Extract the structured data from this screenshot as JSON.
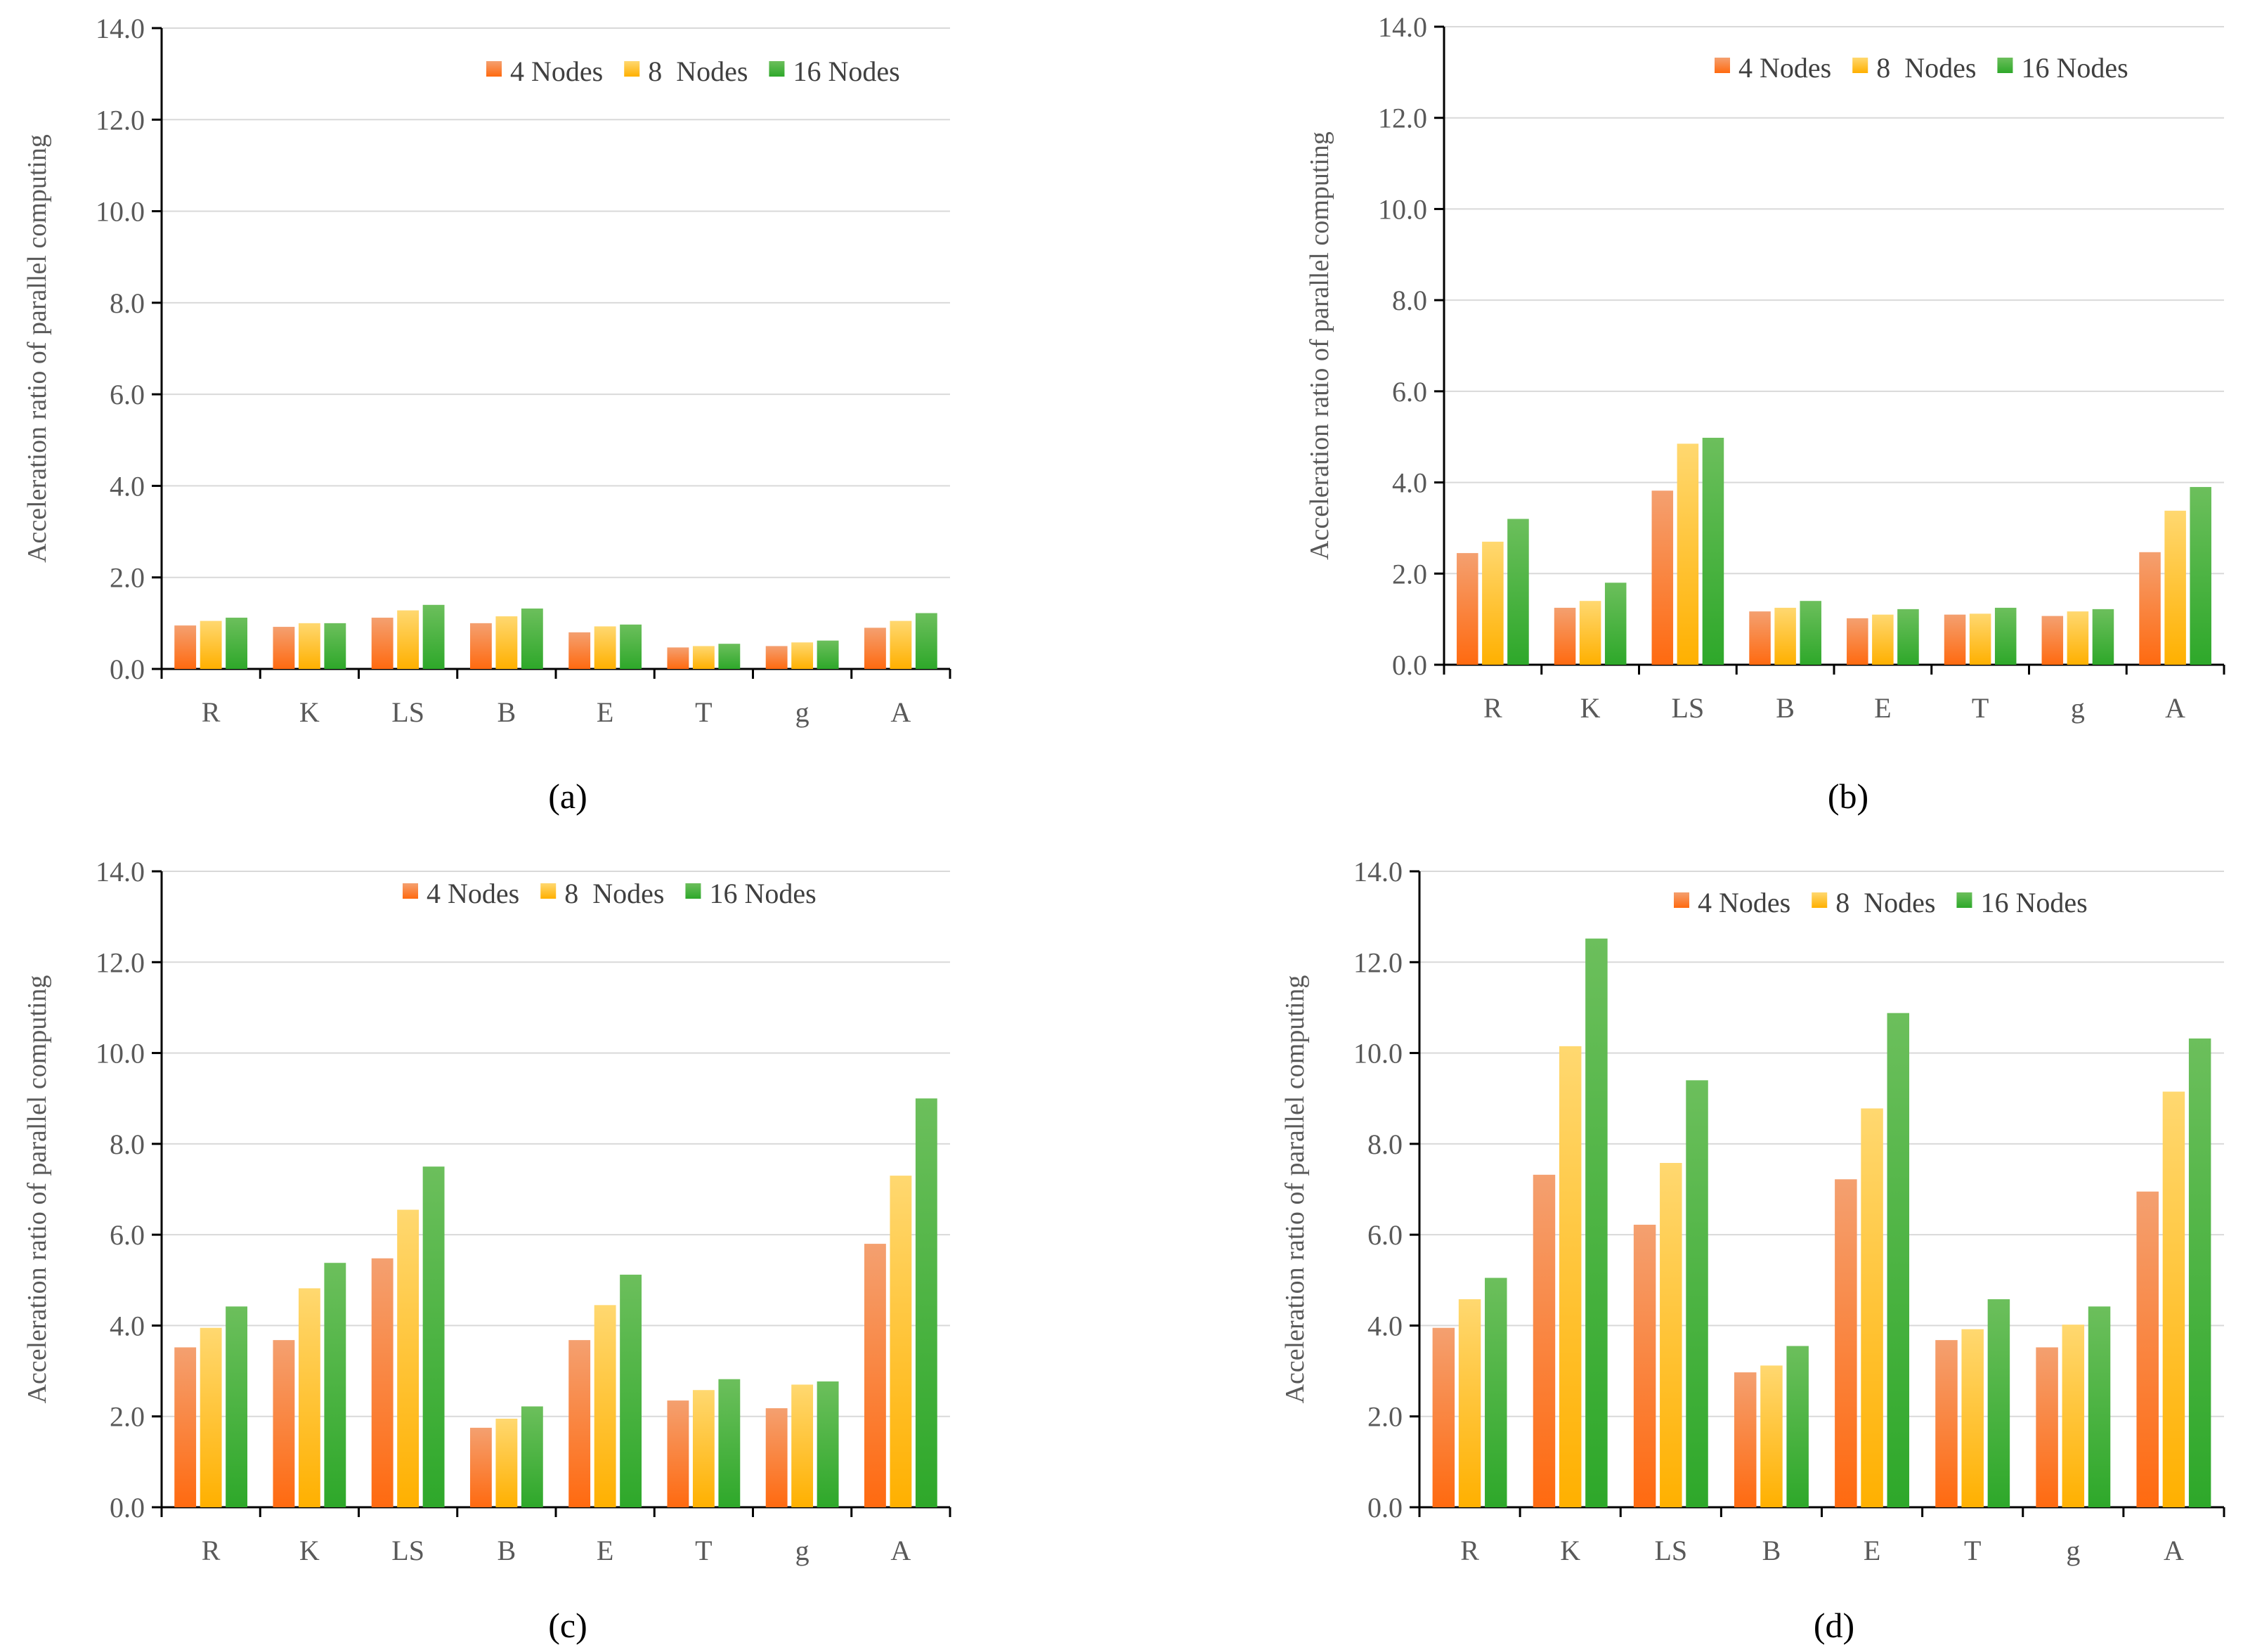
{
  "chart_data": [
    {
      "type": "bar",
      "caption": "(a)",
      "ylabel": "Acceleration ratio of parallel computing",
      "xlabel": "",
      "ylim": [
        0,
        14
      ],
      "yticks": [
        "0.0",
        "2.0",
        "4.0",
        "6.0",
        "8.0",
        "10.0",
        "12.0",
        "14.0"
      ],
      "categories": [
        "R",
        "K",
        "LS",
        "B",
        "E",
        "T",
        "g",
        "A"
      ],
      "legend_position": "top-right",
      "series": [
        {
          "name": "4 Nodes",
          "values": [
            0.95,
            0.92,
            1.12,
            1.0,
            0.8,
            0.47,
            0.5,
            0.9
          ]
        },
        {
          "name": "8  Nodes",
          "values": [
            1.05,
            1.0,
            1.28,
            1.15,
            0.93,
            0.5,
            0.58,
            1.05
          ]
        },
        {
          "name": "16 Nodes",
          "values": [
            1.12,
            1.0,
            1.4,
            1.32,
            0.97,
            0.55,
            0.62,
            1.22
          ]
        }
      ]
    },
    {
      "type": "bar",
      "caption": "(b)",
      "ylabel": "Acceleration ratio of parallel computing",
      "xlabel": "",
      "ylim": [
        0,
        14
      ],
      "yticks": [
        "0.0",
        "2.0",
        "4.0",
        "6.0",
        "8.0",
        "10.0",
        "12.0",
        "14.0"
      ],
      "categories": [
        "R",
        "K",
        "LS",
        "B",
        "E",
        "T",
        "g",
        "A"
      ],
      "legend_position": "top-right",
      "series": [
        {
          "name": "4 Nodes",
          "values": [
            2.45,
            1.25,
            3.82,
            1.17,
            1.02,
            1.1,
            1.07,
            2.47
          ]
        },
        {
          "name": "8  Nodes",
          "values": [
            2.7,
            1.4,
            4.85,
            1.25,
            1.1,
            1.12,
            1.17,
            3.38
          ]
        },
        {
          "name": "16 Nodes",
          "values": [
            3.2,
            1.8,
            4.98,
            1.4,
            1.22,
            1.25,
            1.22,
            3.9
          ]
        }
      ]
    },
    {
      "type": "bar",
      "caption": "(c)",
      "ylabel": "Acceleration ratio of parallel computing",
      "xlabel": "",
      "ylim": [
        0,
        14
      ],
      "yticks": [
        "0.0",
        "2.0",
        "4.0",
        "6.0",
        "8.0",
        "10.0",
        "12.0",
        "14.0"
      ],
      "categories": [
        "R",
        "K",
        "LS",
        "B",
        "E",
        "T",
        "g",
        "A"
      ],
      "legend_position": "top-right",
      "series": [
        {
          "name": "4 Nodes",
          "values": [
            3.52,
            3.68,
            5.48,
            1.75,
            3.68,
            2.35,
            2.18,
            5.8
          ]
        },
        {
          "name": "8  Nodes",
          "values": [
            3.95,
            4.82,
            6.55,
            1.95,
            4.45,
            2.58,
            2.7,
            7.3
          ]
        },
        {
          "name": "16 Nodes",
          "values": [
            4.42,
            5.38,
            7.5,
            2.22,
            5.12,
            2.82,
            2.77,
            9.0
          ]
        }
      ]
    },
    {
      "type": "bar",
      "caption": "(d)",
      "ylabel": "Acceleration ratio of parallel computing",
      "xlabel": "",
      "ylim": [
        0,
        14
      ],
      "yticks": [
        "0.0",
        "2.0",
        "4.0",
        "6.0",
        "8.0",
        "10.0",
        "12.0",
        "14.0"
      ],
      "categories": [
        "R",
        "K",
        "LS",
        "B",
        "E",
        "T",
        "g",
        "A"
      ],
      "legend_position": "top-right",
      "series": [
        {
          "name": "4 Nodes",
          "values": [
            3.95,
            7.32,
            6.22,
            2.97,
            7.22,
            3.68,
            3.52,
            6.95
          ]
        },
        {
          "name": "8  Nodes",
          "values": [
            4.58,
            10.15,
            7.58,
            3.12,
            8.78,
            3.92,
            4.02,
            9.15
          ]
        },
        {
          "name": "16 Nodes",
          "values": [
            5.05,
            12.52,
            9.4,
            3.55,
            10.88,
            4.58,
            4.42,
            10.32
          ]
        }
      ]
    }
  ],
  "colors": {
    "series": [
      {
        "top": "#f4a070",
        "bottom": "#ff6a10"
      },
      {
        "top": "#ffd870",
        "bottom": "#ffb000"
      },
      {
        "top": "#6cbf5c",
        "bottom": "#2ea82a"
      }
    ],
    "grid": "#d9d9d9",
    "axis": "#000000"
  }
}
